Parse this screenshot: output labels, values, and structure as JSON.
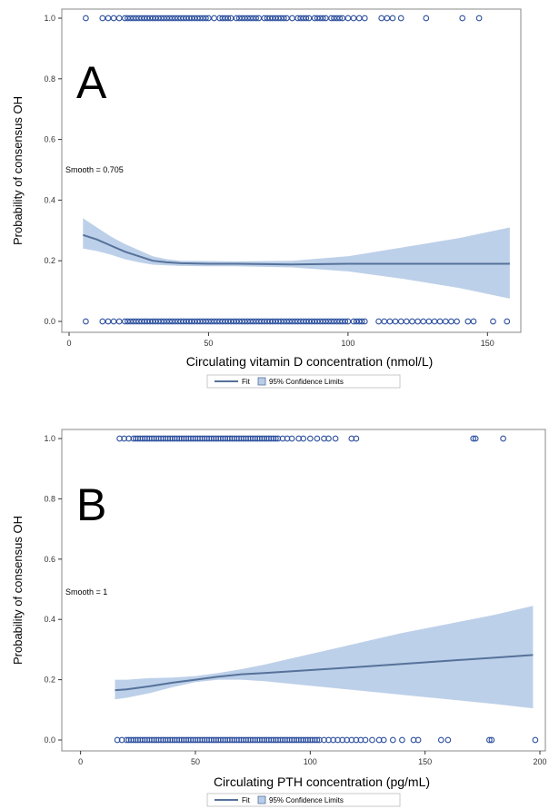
{
  "chart_data": [
    {
      "type": "line",
      "panel_label": "A",
      "annotation": "Smooth = 0.705",
      "xlabel": "Circulating  vitamin D concentration (nmol/L)",
      "ylabel": "Probability of consensus OH",
      "xlim": [
        0,
        160
      ],
      "ylim": [
        0,
        1.0
      ],
      "xticks": [
        0,
        50,
        100,
        150
      ],
      "yticks": [
        0.0,
        0.2,
        0.4,
        0.6,
        0.8,
        1.0
      ],
      "ytick_labels": [
        "0.0",
        "0.2",
        "0.4",
        "0.6",
        "0.8",
        "1.0"
      ],
      "legend": {
        "fit_label": "Fit",
        "ci_label": "95% Confidence Limits",
        "placement": "bottom-center"
      },
      "fit": {
        "x": [
          5,
          10,
          15,
          20,
          25,
          30,
          35,
          40,
          50,
          60,
          80,
          100,
          120,
          140,
          158
        ],
        "y": [
          0.285,
          0.27,
          0.25,
          0.23,
          0.215,
          0.2,
          0.195,
          0.192,
          0.19,
          0.19,
          0.188,
          0.19,
          0.19,
          0.19,
          0.19
        ]
      },
      "ci_lower": {
        "x": [
          5,
          10,
          15,
          20,
          25,
          30,
          35,
          40,
          50,
          60,
          80,
          100,
          120,
          140,
          158
        ],
        "y": [
          0.24,
          0.232,
          0.22,
          0.205,
          0.195,
          0.187,
          0.185,
          0.183,
          0.182,
          0.182,
          0.178,
          0.165,
          0.14,
          0.11,
          0.075
        ]
      },
      "ci_upper": {
        "x": [
          5,
          10,
          15,
          20,
          25,
          30,
          35,
          40,
          50,
          60,
          80,
          100,
          120,
          140,
          158
        ],
        "y": [
          0.34,
          0.31,
          0.28,
          0.255,
          0.235,
          0.215,
          0.205,
          0.2,
          0.199,
          0.198,
          0.2,
          0.215,
          0.245,
          0.275,
          0.31
        ]
      },
      "observed_1": [
        6,
        12,
        14,
        16,
        18,
        20,
        21,
        22,
        23,
        24,
        25,
        26,
        27,
        28,
        29,
        30,
        31,
        32,
        33,
        34,
        35,
        36,
        37,
        38,
        39,
        40,
        41,
        42,
        43,
        44,
        45,
        46,
        47,
        48,
        49,
        50,
        52,
        54,
        55,
        56,
        57,
        58,
        60,
        61,
        62,
        63,
        64,
        65,
        66,
        67,
        68,
        70,
        71,
        72,
        73,
        74,
        75,
        76,
        77,
        78,
        80,
        82,
        83,
        84,
        85,
        86,
        88,
        89,
        90,
        91,
        92,
        94,
        95,
        96,
        97,
        98,
        100,
        102,
        104,
        106,
        112,
        114,
        116,
        119,
        128,
        141,
        147
      ],
      "observed_0": [
        6,
        12,
        14,
        16,
        18,
        20,
        21,
        22,
        23,
        24,
        25,
        26,
        27,
        28,
        29,
        30,
        31,
        32,
        33,
        34,
        35,
        36,
        37,
        38,
        39,
        40,
        41,
        42,
        43,
        44,
        45,
        46,
        47,
        48,
        49,
        50,
        51,
        52,
        53,
        54,
        55,
        56,
        57,
        58,
        59,
        60,
        61,
        62,
        63,
        64,
        65,
        66,
        67,
        68,
        69,
        70,
        71,
        72,
        73,
        74,
        75,
        76,
        77,
        78,
        79,
        80,
        81,
        82,
        83,
        84,
        85,
        86,
        87,
        88,
        89,
        90,
        91,
        92,
        93,
        94,
        95,
        96,
        97,
        98,
        99,
        100,
        102,
        103,
        104,
        105,
        106,
        111,
        113,
        115,
        117,
        119,
        121,
        123,
        125,
        127,
        129,
        131,
        133,
        135,
        137,
        139,
        143,
        145,
        152,
        157
      ]
    },
    {
      "type": "line",
      "panel_label": "B",
      "annotation": "Smooth = 1",
      "xlabel": "Circulating  PTH concentration (pg/mL)",
      "ylabel": "Probability of consensus OH",
      "xlim": [
        -5,
        200
      ],
      "ylim": [
        0,
        1.0
      ],
      "xticks": [
        0,
        50,
        100,
        150,
        200
      ],
      "yticks": [
        0.0,
        0.2,
        0.4,
        0.6,
        0.8,
        1.0
      ],
      "ytick_labels": [
        "0.0",
        "0.2",
        "0.4",
        "0.6",
        "0.8",
        "1.0"
      ],
      "legend": {
        "fit_label": "Fit",
        "ci_label": "95% Confidence Limits",
        "placement": "bottom-center"
      },
      "fit": {
        "x": [
          15,
          20,
          30,
          40,
          50,
          60,
          70,
          80,
          100,
          120,
          140,
          160,
          180,
          197
        ],
        "y": [
          0.165,
          0.168,
          0.178,
          0.19,
          0.2,
          0.21,
          0.218,
          0.222,
          0.232,
          0.242,
          0.252,
          0.263,
          0.273,
          0.282
        ]
      },
      "ci_lower": {
        "x": [
          15,
          20,
          30,
          40,
          50,
          60,
          70,
          80,
          100,
          120,
          140,
          160,
          180,
          197
        ],
        "y": [
          0.135,
          0.14,
          0.155,
          0.175,
          0.192,
          0.2,
          0.2,
          0.195,
          0.18,
          0.165,
          0.15,
          0.135,
          0.12,
          0.105
        ]
      },
      "ci_upper": {
        "x": [
          15,
          20,
          30,
          40,
          50,
          60,
          70,
          80,
          100,
          120,
          140,
          160,
          180,
          197
        ],
        "y": [
          0.2,
          0.2,
          0.205,
          0.207,
          0.212,
          0.222,
          0.235,
          0.25,
          0.285,
          0.32,
          0.355,
          0.385,
          0.415,
          0.445
        ]
      },
      "observed_1": [
        17,
        19,
        21,
        23,
        24,
        25,
        26,
        27,
        28,
        29,
        30,
        31,
        32,
        33,
        34,
        35,
        36,
        37,
        38,
        39,
        40,
        41,
        42,
        43,
        44,
        45,
        46,
        47,
        48,
        49,
        50,
        51,
        52,
        53,
        54,
        55,
        56,
        57,
        58,
        59,
        60,
        61,
        62,
        63,
        64,
        65,
        66,
        67,
        68,
        69,
        70,
        71,
        72,
        73,
        74,
        75,
        76,
        77,
        78,
        79,
        80,
        81,
        82,
        83,
        84,
        85,
        86,
        88,
        90,
        92,
        95,
        97,
        100,
        103,
        106,
        108,
        111,
        118,
        120,
        171,
        172,
        184
      ],
      "observed_0": [
        16,
        18,
        20,
        21,
        22,
        23,
        24,
        25,
        26,
        27,
        28,
        29,
        30,
        31,
        32,
        33,
        34,
        35,
        36,
        37,
        38,
        39,
        40,
        41,
        42,
        43,
        44,
        45,
        46,
        47,
        48,
        49,
        50,
        51,
        52,
        53,
        54,
        55,
        56,
        57,
        58,
        59,
        60,
        61,
        62,
        63,
        64,
        65,
        66,
        67,
        68,
        69,
        70,
        71,
        72,
        73,
        74,
        75,
        76,
        77,
        78,
        79,
        80,
        81,
        82,
        83,
        84,
        85,
        86,
        87,
        88,
        89,
        90,
        91,
        92,
        93,
        94,
        95,
        96,
        97,
        98,
        99,
        100,
        101,
        102,
        103,
        104,
        106,
        108,
        110,
        112,
        114,
        116,
        118,
        120,
        122,
        124,
        127,
        130,
        132,
        136,
        140,
        145,
        147,
        157,
        160,
        178,
        179,
        198
      ]
    }
  ],
  "colors": {
    "marker": "#2c4f9e",
    "fit_line": "#56729a",
    "band": "#b9cde8",
    "frame": "#888888"
  }
}
